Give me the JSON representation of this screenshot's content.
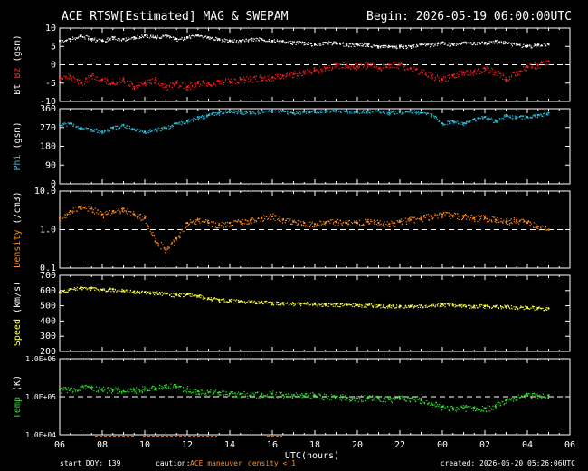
{
  "header": {
    "title": "ACE RTSW[Estimated] MAG & SWEPAM",
    "begin": "Begin: 2026-05-19 06:00:00UTC"
  },
  "footer": {
    "start_doy": "start DOY: 139",
    "caution": "caution:",
    "maneuver": "ACE maneuver",
    "density_flag": "density < 1",
    "created": "created: 2026-05-20 05:26:06UTC"
  },
  "colors": {
    "white": "#ffffff",
    "bz": "#ff2020",
    "phi": "#30c0e0",
    "density": "#ff8c1a",
    "speed": "#ffff40",
    "temp": "#30e030",
    "caution": "#ffffff",
    "maneuver": "#ff8c1a"
  },
  "chart_data": [
    {
      "type": "scatter",
      "panel": "mag",
      "ylabel_parts": [
        "Bt",
        "Bz",
        "(gsm)"
      ],
      "yticks": [
        "10",
        "5",
        "0",
        "-5",
        "-10"
      ],
      "ylim": [
        -10,
        10
      ],
      "reference_line": 0,
      "series": [
        {
          "name": "Bt",
          "x": [
            6,
            6.5,
            7,
            7.5,
            8,
            8.5,
            9,
            9.5,
            10,
            10.5,
            11,
            11.5,
            12,
            12.5,
            13,
            13.5,
            14,
            14.5,
            15,
            15.5,
            16,
            16.5,
            17,
            17.5,
            18,
            18.5,
            19,
            19.5,
            20,
            20.5,
            21,
            21.5,
            22,
            22.5,
            23,
            23.5,
            24,
            24.5,
            25,
            25.5,
            26,
            26.5,
            27,
            27.5,
            28,
            28.5,
            29
          ],
          "y": [
            6.5,
            7,
            8,
            7,
            6.5,
            7.5,
            7,
            7.5,
            8,
            7.5,
            8,
            7,
            7.5,
            8,
            7.5,
            7,
            6.5,
            6.5,
            7,
            7,
            6.5,
            6.5,
            6,
            6,
            5.5,
            6,
            6,
            5.5,
            5.5,
            5.5,
            5,
            5,
            5,
            5,
            5.5,
            5.5,
            6,
            5.5,
            6,
            6,
            6,
            6.5,
            6,
            5.5,
            5,
            5.5,
            5.5
          ]
        },
        {
          "name": "Bz",
          "x": [
            6,
            6.5,
            7,
            7.5,
            8,
            8.5,
            9,
            9.5,
            10,
            10.5,
            11,
            11.5,
            12,
            12.5,
            13,
            13.5,
            14,
            14.5,
            15,
            15.5,
            16,
            16.5,
            17,
            17.5,
            18,
            18.5,
            19,
            19.5,
            20,
            20.5,
            21,
            21.5,
            22,
            22.5,
            23,
            23.5,
            24,
            24.5,
            25,
            25.5,
            26,
            26.5,
            27,
            27.5,
            28,
            28.5,
            29
          ],
          "y": [
            -4,
            -3,
            -5,
            -3,
            -4,
            -5,
            -4,
            -6,
            -5,
            -4,
            -6,
            -5,
            -6,
            -5,
            -5,
            -4.5,
            -4.5,
            -4,
            -4,
            -3.5,
            -3.5,
            -3,
            -2.5,
            -2,
            -1.5,
            -1,
            0,
            0,
            -0.5,
            0,
            -1,
            0,
            0,
            -1,
            -2,
            -3,
            -4,
            -3,
            -2,
            -2,
            -1,
            -2,
            -4,
            -2,
            -0.5,
            0,
            1
          ]
        }
      ]
    },
    {
      "type": "scatter",
      "panel": "phi",
      "ylabel_parts": [
        "Phi",
        "(gsm)"
      ],
      "yticks": [
        "360",
        "270",
        "180",
        "90",
        "0"
      ],
      "ylim": [
        0,
        360
      ],
      "series": [
        {
          "name": "Phi",
          "x": [
            6,
            6.5,
            7,
            7.5,
            8,
            8.5,
            9,
            9.5,
            10,
            10.5,
            11,
            11.5,
            12,
            12.5,
            13,
            13.5,
            14,
            14.5,
            15,
            15.5,
            16,
            16.5,
            17,
            17.5,
            18,
            18.5,
            19,
            19.5,
            20,
            20.5,
            21,
            21.5,
            22,
            22.5,
            23,
            23.5,
            24,
            24.5,
            25,
            25.5,
            26,
            26.5,
            27,
            27.5,
            28,
            28.5,
            29
          ],
          "y": [
            280,
            290,
            270,
            260,
            250,
            270,
            280,
            260,
            250,
            260,
            270,
            290,
            300,
            320,
            330,
            340,
            350,
            345,
            340,
            350,
            355,
            350,
            340,
            345,
            350,
            350,
            355,
            350,
            345,
            350,
            350,
            340,
            345,
            350,
            340,
            330,
            290,
            300,
            290,
            310,
            320,
            300,
            330,
            320,
            320,
            330,
            340
          ]
        }
      ]
    },
    {
      "type": "scatter",
      "panel": "density",
      "ylabel_parts": [
        "Density",
        "(/cm3)"
      ],
      "yticks": [
        "10.0",
        "1.0",
        "0.1"
      ],
      "yscale": "log",
      "ylim": [
        0.1,
        10
      ],
      "reference_line": 1,
      "series": [
        {
          "name": "Density",
          "x": [
            6,
            6.5,
            7,
            7.5,
            8,
            8.5,
            9,
            9.5,
            10,
            10.5,
            11,
            11.5,
            12,
            12.5,
            13,
            13.5,
            14,
            14.5,
            15,
            15.5,
            16,
            16.5,
            17,
            17.5,
            18,
            18.5,
            19,
            19.5,
            20,
            20.5,
            21,
            21.5,
            22,
            22.5,
            23,
            23.5,
            24,
            24.5,
            25,
            25.5,
            26,
            26.5,
            27,
            27.5,
            28,
            28.5,
            29
          ],
          "y": [
            2,
            3,
            4,
            3.5,
            2.5,
            3,
            3.5,
            2.5,
            2,
            0.5,
            0.3,
            0.6,
            1.5,
            1.8,
            1.5,
            1.3,
            1.5,
            1.6,
            1.8,
            2,
            2.2,
            1.8,
            1.6,
            1.5,
            1.4,
            1.5,
            1.6,
            1.5,
            1.5,
            1.6,
            1.5,
            1.4,
            1.6,
            1.8,
            2,
            2.2,
            2.5,
            2.3,
            2.2,
            2,
            2,
            1.8,
            1.6,
            1.8,
            1.5,
            1.2,
            1
          ]
        }
      ]
    },
    {
      "type": "scatter",
      "panel": "speed",
      "ylabel_parts": [
        "Speed",
        "(km/s)"
      ],
      "yticks": [
        "700",
        "600",
        "500",
        "400",
        "300",
        "200"
      ],
      "ylim": [
        200,
        700
      ],
      "series": [
        {
          "name": "Speed",
          "x": [
            6,
            6.5,
            7,
            7.5,
            8,
            8.5,
            9,
            9.5,
            10,
            10.5,
            11,
            11.5,
            12,
            12.5,
            13,
            13.5,
            14,
            14.5,
            15,
            15.5,
            16,
            16.5,
            17,
            17.5,
            18,
            18.5,
            19,
            19.5,
            20,
            20.5,
            21,
            21.5,
            22,
            22.5,
            23,
            23.5,
            24,
            24.5,
            25,
            25.5,
            26,
            26.5,
            27,
            27.5,
            28,
            28.5,
            29
          ],
          "y": [
            590,
            610,
            620,
            615,
            605,
            610,
            600,
            595,
            590,
            585,
            580,
            570,
            575,
            565,
            550,
            540,
            535,
            530,
            525,
            525,
            520,
            518,
            515,
            515,
            512,
            510,
            510,
            508,
            505,
            505,
            502,
            500,
            500,
            500,
            502,
            505,
            510,
            505,
            500,
            500,
            498,
            495,
            495,
            490,
            490,
            485,
            482
          ]
        }
      ]
    },
    {
      "type": "scatter",
      "panel": "temp",
      "ylabel_parts": [
        "Temp",
        "(K)"
      ],
      "yticks": [
        "1.0E+06",
        "1.0E+05",
        "1.0E+04"
      ],
      "yscale": "log",
      "ylim": [
        10000,
        1000000
      ],
      "reference_line": 100000,
      "xlabel": "UTC(hours)",
      "xticks": [
        "06",
        "08",
        "10",
        "12",
        "14",
        "16",
        "18",
        "20",
        "22",
        "00",
        "02",
        "04",
        "06"
      ],
      "xlim": [
        6,
        30
      ],
      "series": [
        {
          "name": "Temp",
          "x": [
            6,
            6.5,
            7,
            7.5,
            8,
            8.5,
            9,
            9.5,
            10,
            10.5,
            11,
            11.5,
            12,
            12.5,
            13,
            13.5,
            14,
            14.5,
            15,
            15.5,
            16,
            16.5,
            17,
            17.5,
            18,
            18.5,
            19,
            19.5,
            20,
            20.5,
            21,
            21.5,
            22,
            22.5,
            23,
            23.5,
            24,
            24.5,
            25,
            25.5,
            26,
            26.5,
            27,
            27.5,
            28,
            28.5,
            29
          ],
          "y": [
            150000,
            160000,
            180000,
            170000,
            160000,
            150000,
            140000,
            150000,
            160000,
            170000,
            200000,
            180000,
            160000,
            140000,
            130000,
            130000,
            120000,
            120000,
            110000,
            115000,
            120000,
            110000,
            110000,
            105000,
            110000,
            100000,
            100000,
            95000,
            90000,
            95000,
            90000,
            85000,
            90000,
            90000,
            80000,
            65000,
            55000,
            50000,
            50000,
            52000,
            50000,
            55000,
            80000,
            100000,
            110000,
            105000,
            110000
          ]
        }
      ]
    }
  ]
}
